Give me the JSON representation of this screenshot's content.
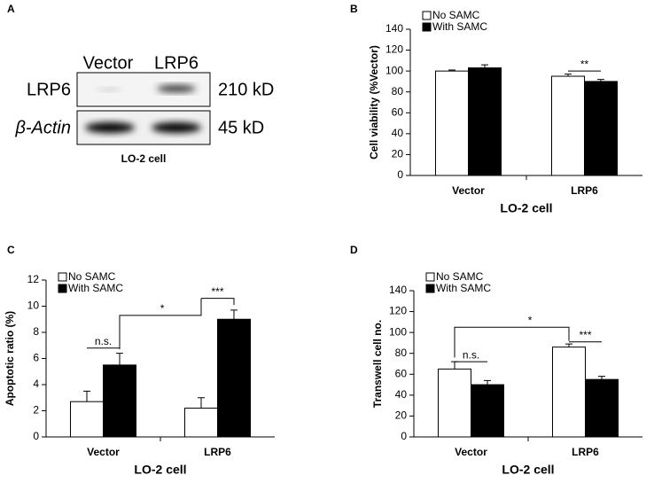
{
  "blot": {
    "panel": "A",
    "columns": [
      "Vector",
      "LRP6"
    ],
    "rows": [
      {
        "label": "LRP6",
        "size": "210 kD"
      },
      {
        "label": "β-Actin",
        "size": "45 kD"
      }
    ],
    "caption": "LO-2 cell"
  },
  "chart_data": [
    {
      "type": "bar",
      "panel": "B",
      "x_label": "LO-2 cell",
      "y_label": "Cell viability (%Vector)",
      "categories": [
        "Vector",
        "LRP6"
      ],
      "series": [
        {
          "name": "No SAMC",
          "color": "#ffffff",
          "values": [
            100,
            95
          ],
          "errors": [
            1,
            2
          ]
        },
        {
          "name": "With SAMC",
          "color": "#000000",
          "values": [
            103,
            90
          ],
          "errors": [
            3,
            2
          ]
        }
      ],
      "ylim": [
        0,
        140
      ],
      "yticks": [
        0,
        20,
        40,
        60,
        80,
        100,
        120,
        140
      ],
      "annotations": [
        "**"
      ]
    },
    {
      "type": "bar",
      "panel": "C",
      "x_label": "LO-2 cell",
      "y_label": "Apoptotic ratio (%)",
      "categories": [
        "Vector",
        "LRP6"
      ],
      "series": [
        {
          "name": "No SAMC",
          "color": "#ffffff",
          "values": [
            2.7,
            2.2
          ],
          "errors": [
            0.8,
            0.8
          ]
        },
        {
          "name": "With SAMC",
          "color": "#000000",
          "values": [
            5.5,
            9.0
          ],
          "errors": [
            0.9,
            0.7
          ]
        }
      ],
      "ylim": [
        0,
        12
      ],
      "yticks": [
        0,
        2,
        4,
        6,
        8,
        10,
        12
      ],
      "annotations": [
        "n.s.",
        "***",
        "*"
      ]
    },
    {
      "type": "bar",
      "panel": "D",
      "x_label": "LO-2 cell",
      "y_label": "Transwell cell no.",
      "categories": [
        "Vector",
        "LRP6"
      ],
      "series": [
        {
          "name": "No SAMC",
          "color": "#ffffff",
          "values": [
            65,
            86
          ],
          "errors": [
            7,
            3
          ]
        },
        {
          "name": "With SAMC",
          "color": "#000000",
          "values": [
            50,
            55
          ],
          "errors": [
            4,
            3
          ]
        }
      ],
      "ylim": [
        0,
        140
      ],
      "yticks": [
        0,
        20,
        40,
        60,
        80,
        100,
        120,
        140
      ],
      "annotations": [
        "n.s.",
        "***",
        "*"
      ]
    }
  ]
}
